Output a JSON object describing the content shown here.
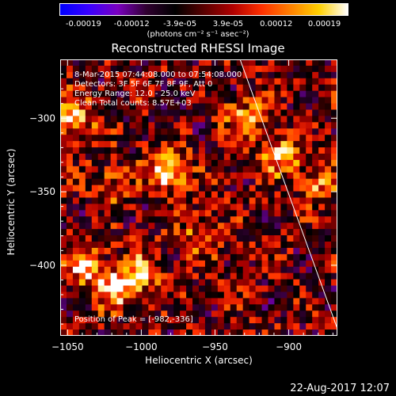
{
  "colorbar": {
    "ticks": [
      "-0.00019",
      "-0.00012",
      "-3.9e-05",
      "3.9e-05",
      "0.00012",
      "0.00019"
    ],
    "unit_label": "(photons cm⁻² s⁻¹ asec⁻²)",
    "colors": [
      "#0000ff",
      "#3a00ff",
      "#7a00c0",
      "#300030",
      "#000000",
      "#5a0000",
      "#b00000",
      "#ff3000",
      "#ff8000",
      "#ffd000",
      "#ffffff"
    ]
  },
  "chart_data": {
    "type": "heatmap",
    "title": "Reconstructed RHESSI Image",
    "xlabel": "Heliocentric X (arcsec)",
    "ylabel": "Heliocentric Y (arcsec)",
    "xlim": [
      -1055,
      -867
    ],
    "ylim": [
      -448,
      -260
    ],
    "x_ticks": [
      -1050,
      -1000,
      -950,
      -900
    ],
    "y_ticks": [
      -300,
      -350,
      -400
    ],
    "info_lines": [
      " 8-Mar-2015 07:44:08.000 to 07:54:08.000",
      "Detectors: 3F 5F 6F 7F 8F 9F, Att 0",
      "Energy Range: 12.0 - 25.0 keV",
      "Clean     Total counts: 8.57E+03"
    ],
    "peak_label": "Position of Peak = [-982,-336]",
    "peak": [
      -982,
      -336
    ],
    "bright_sources": [
      {
        "x": -982,
        "y": -336,
        "value": 1.0
      },
      {
        "x": -1046,
        "y": -300,
        "value": 0.9
      },
      {
        "x": -1018,
        "y": -415,
        "value": 0.85
      },
      {
        "x": -905,
        "y": -325,
        "value": 0.8
      },
      {
        "x": -1000,
        "y": -405,
        "value": 0.7
      },
      {
        "x": -930,
        "y": -300,
        "value": 0.65
      },
      {
        "x": -1040,
        "y": -400,
        "value": 0.7
      },
      {
        "x": -960,
        "y": -380,
        "value": 0.5
      },
      {
        "x": -1020,
        "y": -345,
        "value": 0.45
      },
      {
        "x": -880,
        "y": -345,
        "value": 0.55
      }
    ],
    "limb_line": [
      [
        -933,
        -260
      ],
      [
        -866,
        -446
      ]
    ],
    "value_range": [
      -0.00019,
      0.00019
    ]
  },
  "date_stamp": "22-Aug-2017 12:07"
}
